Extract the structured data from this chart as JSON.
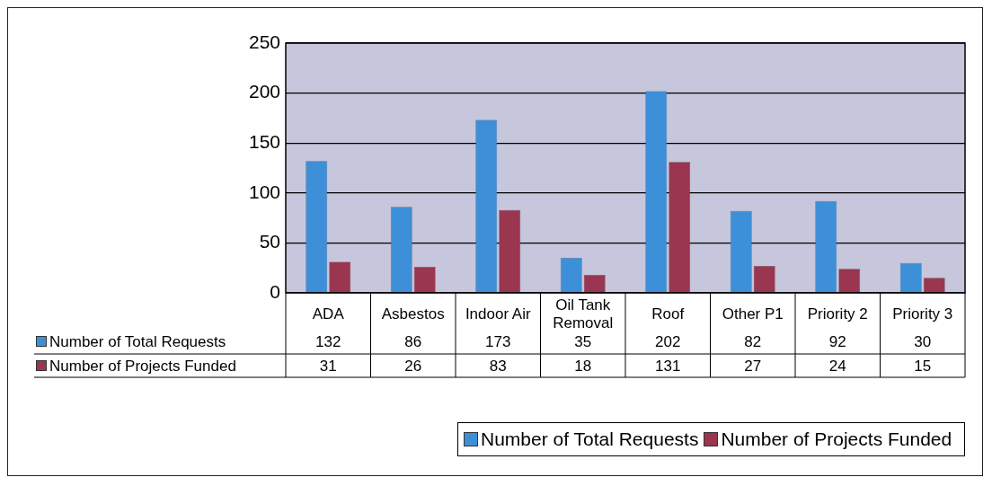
{
  "chart_data": {
    "type": "bar",
    "categories": [
      "ADA",
      "Asbestos",
      "Indoor Air",
      "Oil Tank Removal",
      "Roof",
      "Other P1",
      "Priority 2",
      "Priority 3"
    ],
    "series": [
      {
        "name": "Number of Total Requests",
        "color": "#3d8fd8",
        "values": [
          132,
          86,
          173,
          35,
          202,
          82,
          92,
          30
        ]
      },
      {
        "name": "Number of Projects Funded",
        "color": "#9a3650",
        "values": [
          31,
          26,
          83,
          18,
          131,
          27,
          24,
          15
        ]
      }
    ],
    "ylim": [
      0,
      250
    ],
    "yticks": [
      0,
      50,
      100,
      150,
      200,
      250
    ],
    "grid": "y",
    "legend": "bottom left",
    "data_labels": true
  }
}
